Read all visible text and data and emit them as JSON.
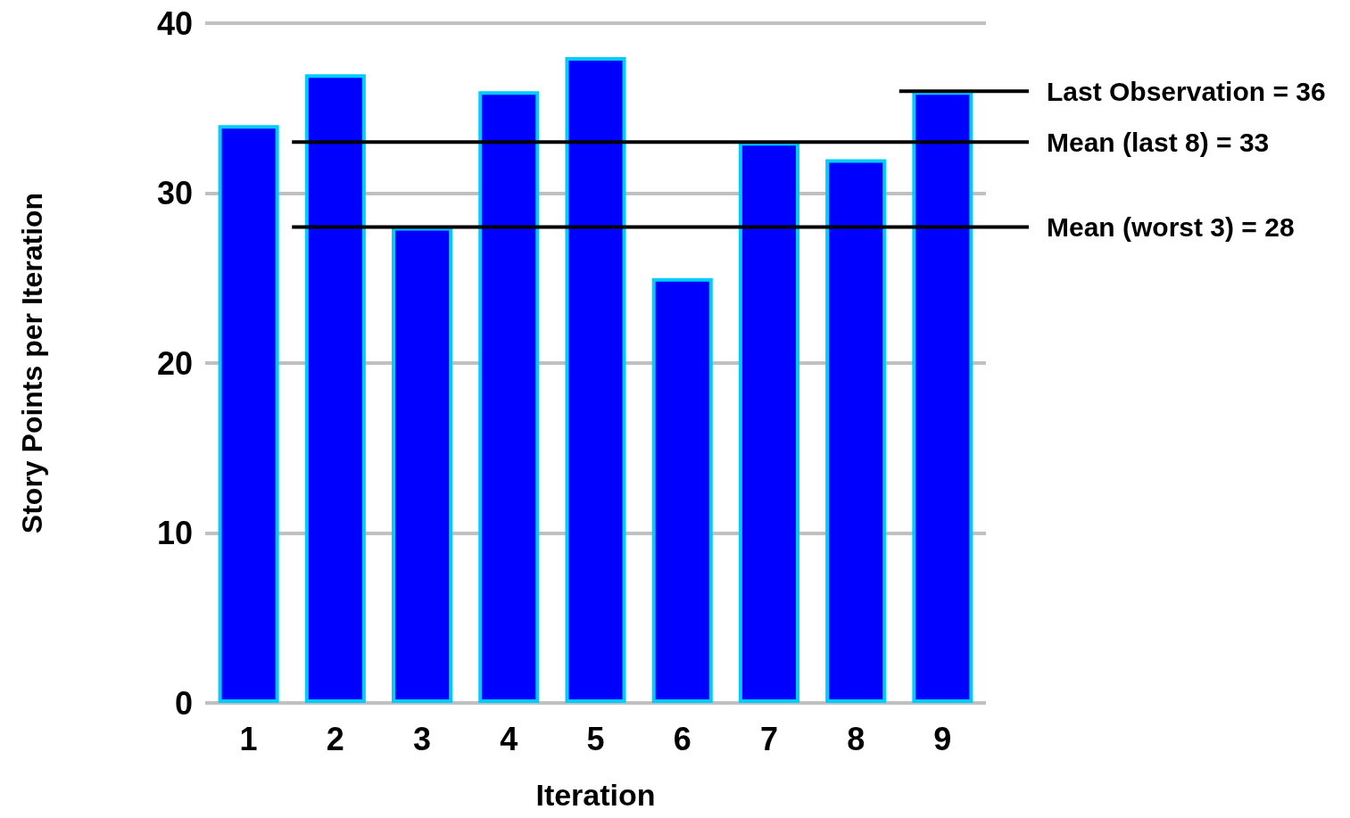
{
  "chart_data": {
    "type": "bar",
    "xlabel": "Iteration",
    "ylabel": "Story Points per Iteration",
    "categories": [
      "1",
      "2",
      "3",
      "4",
      "5",
      "6",
      "7",
      "8",
      "9"
    ],
    "series": [
      {
        "color": "#0000ff",
        "values": [
          34,
          37,
          28,
          36,
          38,
          25,
          33,
          32,
          36
        ]
      }
    ],
    "ylim": [
      0,
      40
    ],
    "yticks": [
      0,
      10,
      20,
      30,
      40
    ],
    "grid": "y",
    "ref_lines": [
      {
        "axis": "y",
        "value": 36,
        "label": "Last Observation = 36",
        "color": "#000000"
      },
      {
        "axis": "y",
        "value": 33,
        "label": "Mean (last 8) = 33",
        "color": "#000000"
      },
      {
        "axis": "y",
        "value": 28,
        "label": "Mean (worst 3) = 28",
        "color": "#000000"
      }
    ]
  }
}
